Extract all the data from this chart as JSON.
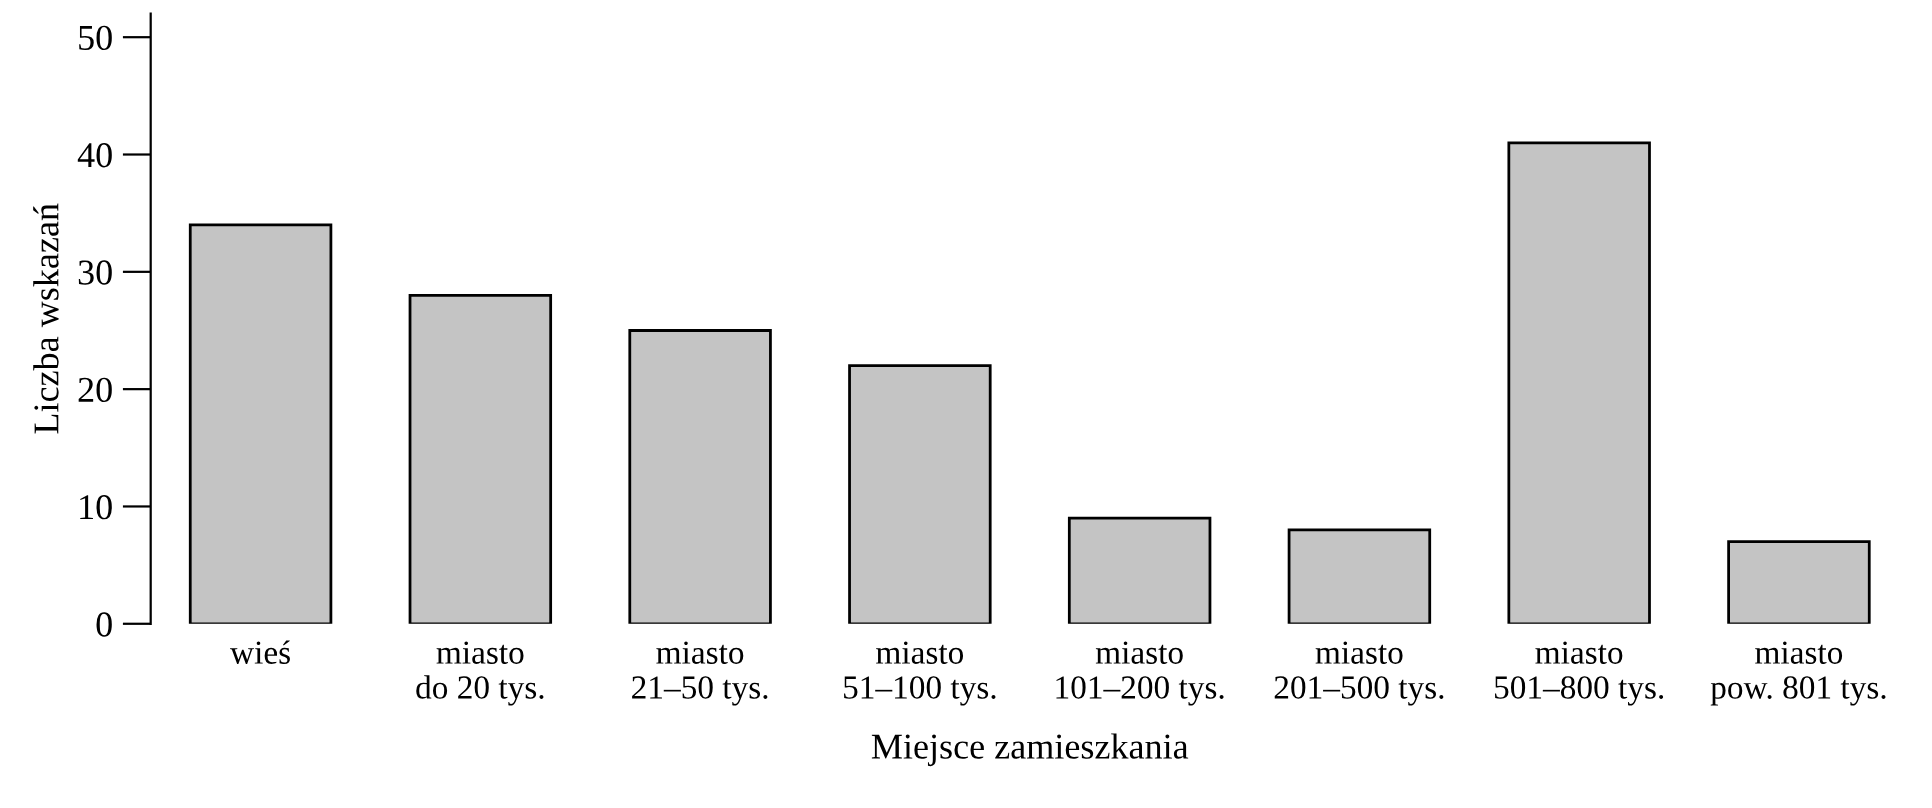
{
  "chart_data": {
    "type": "bar",
    "xlabel": "Miejsce zamieszkania",
    "ylabel": "Liczba wskazań",
    "categories": [
      "wieś",
      "miasto\ndo 20 tys.",
      "miasto\n21–50 tys.",
      "miasto\n51–100 tys.",
      "miasto\n101–200 tys.",
      "miasto\n201–500 tys.",
      "miasto\n501–800 tys.",
      "miasto\npow. 801 tys."
    ],
    "values": [
      34,
      28,
      25,
      22,
      9,
      8,
      41,
      7
    ],
    "color": "#c4c4c4",
    "ylim": [
      0,
      52
    ],
    "yticks": [
      0,
      10,
      20,
      30,
      40,
      50
    ],
    "grid": false,
    "legend": false
  }
}
